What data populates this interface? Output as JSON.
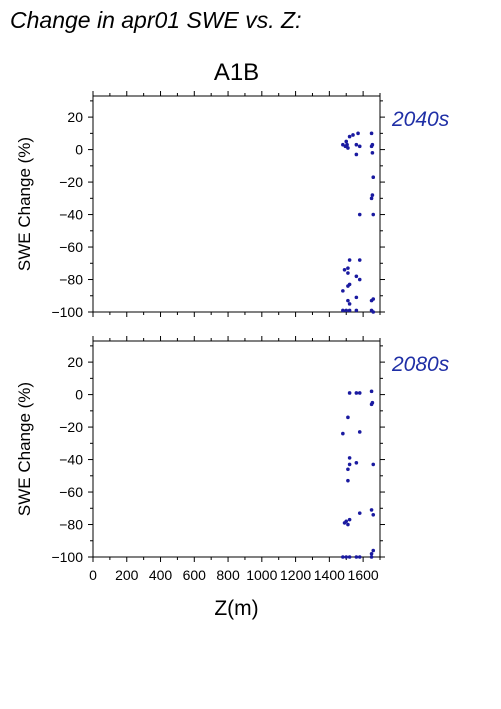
{
  "header": {
    "title": "Change in apr01 SWE vs. Z:"
  },
  "chart_data": [
    {
      "type": "scatter",
      "title": "A1B",
      "period_label": "2040s",
      "xlabel": "",
      "ylabel": "SWE Change (%)",
      "xlim": [
        0,
        1700
      ],
      "ylim": [
        -100,
        33
      ],
      "xticks": [],
      "yticks": [
        20,
        0,
        -20,
        -40,
        -60,
        -80,
        -100
      ],
      "grid": false,
      "colors": {
        "points": "#1a1aa0",
        "period_label": "#1f2fa6"
      },
      "points": [
        {
          "x": 1480,
          "y": 3
        },
        {
          "x": 1495,
          "y": 2
        },
        {
          "x": 1500,
          "y": 5
        },
        {
          "x": 1505,
          "y": 3
        },
        {
          "x": 1510,
          "y": 1
        },
        {
          "x": 1520,
          "y": 8
        },
        {
          "x": 1540,
          "y": 9
        },
        {
          "x": 1560,
          "y": 3
        },
        {
          "x": 1570,
          "y": 10
        },
        {
          "x": 1580,
          "y": 2
        },
        {
          "x": 1560,
          "y": -3
        },
        {
          "x": 1650,
          "y": 10
        },
        {
          "x": 1655,
          "y": 3
        },
        {
          "x": 1650,
          "y": 2
        },
        {
          "x": 1655,
          "y": -2
        },
        {
          "x": 1660,
          "y": -17
        },
        {
          "x": 1655,
          "y": -28
        },
        {
          "x": 1650,
          "y": -30
        },
        {
          "x": 1580,
          "y": -40
        },
        {
          "x": 1660,
          "y": -40
        },
        {
          "x": 1520,
          "y": -68
        },
        {
          "x": 1580,
          "y": -68
        },
        {
          "x": 1490,
          "y": -74
        },
        {
          "x": 1510,
          "y": -73
        },
        {
          "x": 1510,
          "y": -76
        },
        {
          "x": 1560,
          "y": -78
        },
        {
          "x": 1580,
          "y": -80
        },
        {
          "x": 1510,
          "y": -84
        },
        {
          "x": 1520,
          "y": -83
        },
        {
          "x": 1480,
          "y": -87
        },
        {
          "x": 1560,
          "y": -91
        },
        {
          "x": 1660,
          "y": -92
        },
        {
          "x": 1650,
          "y": -93
        },
        {
          "x": 1510,
          "y": -93
        },
        {
          "x": 1520,
          "y": -95
        },
        {
          "x": 1480,
          "y": -99
        },
        {
          "x": 1500,
          "y": -99
        },
        {
          "x": 1520,
          "y": -99
        },
        {
          "x": 1560,
          "y": -99
        },
        {
          "x": 1650,
          "y": -99
        },
        {
          "x": 1660,
          "y": -100
        }
      ]
    },
    {
      "type": "scatter",
      "title": "",
      "period_label": "2080s",
      "xlabel": "Z(m)",
      "ylabel": "SWE Change (%)",
      "xlim": [
        0,
        1700
      ],
      "ylim": [
        -100,
        33
      ],
      "xticks": [
        "0",
        "200",
        "400",
        "600",
        "800",
        "1000",
        "1200",
        "1400",
        "1600"
      ],
      "yticks": [
        20,
        0,
        -20,
        -40,
        -60,
        -80,
        -100
      ],
      "grid": false,
      "colors": {
        "points": "#1a1aa0",
        "period_label": "#1f2fa6"
      },
      "points": [
        {
          "x": 1520,
          "y": 1
        },
        {
          "x": 1560,
          "y": 1
        },
        {
          "x": 1580,
          "y": 1
        },
        {
          "x": 1650,
          "y": 2
        },
        {
          "x": 1655,
          "y": -5
        },
        {
          "x": 1650,
          "y": -6
        },
        {
          "x": 1510,
          "y": -14
        },
        {
          "x": 1480,
          "y": -24
        },
        {
          "x": 1580,
          "y": -23
        },
        {
          "x": 1520,
          "y": -39
        },
        {
          "x": 1520,
          "y": -43
        },
        {
          "x": 1560,
          "y": -42
        },
        {
          "x": 1660,
          "y": -43
        },
        {
          "x": 1510,
          "y": -46
        },
        {
          "x": 1510,
          "y": -53
        },
        {
          "x": 1580,
          "y": -73
        },
        {
          "x": 1650,
          "y": -71
        },
        {
          "x": 1660,
          "y": -74
        },
        {
          "x": 1490,
          "y": -79
        },
        {
          "x": 1500,
          "y": -78
        },
        {
          "x": 1520,
          "y": -77
        },
        {
          "x": 1510,
          "y": -80
        },
        {
          "x": 1660,
          "y": -96
        },
        {
          "x": 1650,
          "y": -98
        },
        {
          "x": 1480,
          "y": -100
        },
        {
          "x": 1500,
          "y": -100
        },
        {
          "x": 1520,
          "y": -100
        },
        {
          "x": 1560,
          "y": -100
        },
        {
          "x": 1580,
          "y": -100
        },
        {
          "x": 1650,
          "y": -100
        }
      ]
    }
  ]
}
